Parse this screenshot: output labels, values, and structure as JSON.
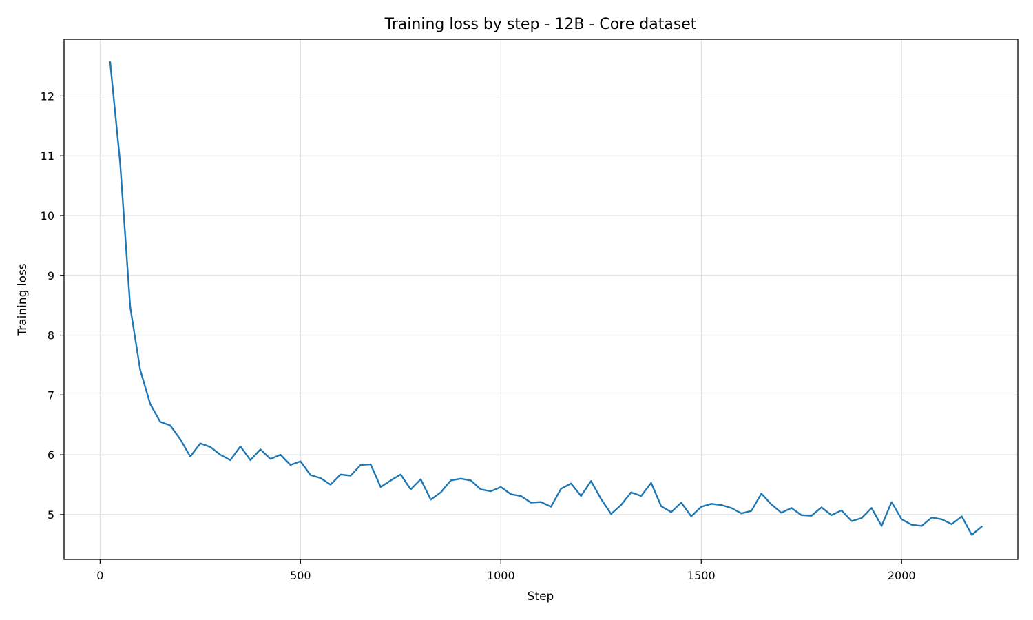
{
  "chart_data": {
    "type": "line",
    "title": "Training loss by step - 12B - Core dataset",
    "xlabel": "Step",
    "ylabel": "Training loss",
    "xlim": [
      -90,
      2290
    ],
    "ylim": [
      4.25,
      12.95
    ],
    "xticks": [
      0,
      500,
      1000,
      1500,
      2000
    ],
    "yticks": [
      5,
      6,
      7,
      8,
      9,
      10,
      11,
      12
    ],
    "grid": true,
    "color": "#1f77b4",
    "series": [
      {
        "x": [
          25,
          50,
          75,
          100,
          125,
          150,
          175,
          200,
          225,
          250,
          275,
          300,
          325,
          350,
          375,
          400,
          425,
          450,
          475,
          500,
          525,
          550,
          575,
          600,
          625,
          650,
          675,
          700,
          725,
          750,
          775,
          800,
          825,
          850,
          875,
          900,
          925,
          950,
          975,
          1000,
          1025,
          1050,
          1075,
          1100,
          1125,
          1150,
          1175,
          1200,
          1225,
          1250,
          1275,
          1300,
          1325,
          1350,
          1375,
          1400,
          1425,
          1450,
          1475,
          1500,
          1525,
          1550,
          1575,
          1600,
          1625,
          1650,
          1675,
          1700,
          1725,
          1750,
          1775,
          1800,
          1825,
          1850,
          1875,
          1900,
          1925,
          1950,
          1975,
          2000,
          2025,
          2050,
          2075,
          2100,
          2125,
          2150,
          2175,
          2200
        ],
        "values": [
          12.57,
          10.88,
          8.48,
          7.42,
          6.85,
          6.55,
          6.49,
          6.26,
          5.97,
          6.19,
          6.13,
          6.0,
          5.91,
          6.14,
          5.91,
          6.09,
          5.93,
          6.0,
          5.83,
          5.89,
          5.66,
          5.61,
          5.5,
          5.67,
          5.65,
          5.83,
          5.84,
          5.46,
          5.57,
          5.67,
          5.42,
          5.59,
          5.25,
          5.37,
          5.57,
          5.6,
          5.57,
          5.42,
          5.39,
          5.46,
          5.34,
          5.31,
          5.2,
          5.21,
          5.13,
          5.43,
          5.52,
          5.31,
          5.56,
          5.26,
          5.01,
          5.16,
          5.37,
          5.31,
          5.53,
          5.14,
          5.04,
          5.2,
          4.97,
          5.13,
          5.18,
          5.16,
          5.11,
          5.02,
          5.06,
          5.35,
          5.17,
          5.03,
          5.11,
          4.99,
          4.98,
          5.12,
          4.99,
          5.07,
          4.89,
          4.94,
          5.11,
          4.81,
          5.21,
          4.92,
          4.83,
          4.81,
          4.95,
          4.92,
          4.84,
          4.97,
          4.66,
          4.8
        ]
      }
    ]
  }
}
